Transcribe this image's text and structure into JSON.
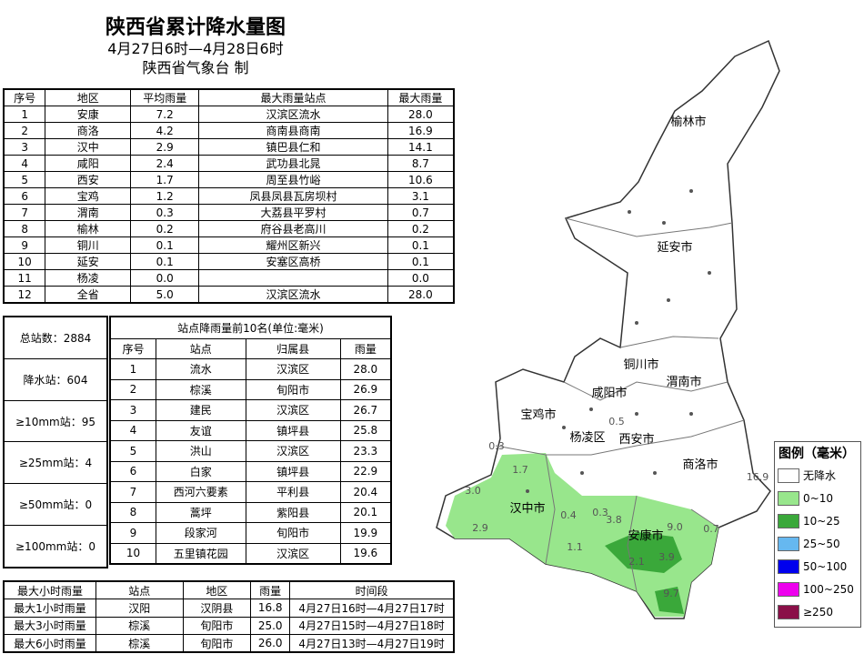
{
  "header": {
    "title": "陕西省累计降水量图",
    "subtitle": "4月27日6时—4月28日6时",
    "issuer": "陕西省气象台 制"
  },
  "region_table": {
    "columns": [
      "序号",
      "地区",
      "平均雨量",
      "最大雨量站点",
      "最大雨量"
    ],
    "rows": [
      [
        "1",
        "安康",
        "7.2",
        "汉滨区流水",
        "28.0"
      ],
      [
        "2",
        "商洛",
        "4.2",
        "商南县商南",
        "16.9"
      ],
      [
        "3",
        "汉中",
        "2.9",
        "镇巴县仁和",
        "14.1"
      ],
      [
        "4",
        "咸阳",
        "2.4",
        "武功县北晁",
        "8.7"
      ],
      [
        "5",
        "西安",
        "1.7",
        "周至县竹峪",
        "10.6"
      ],
      [
        "6",
        "宝鸡",
        "1.2",
        "凤县凤县瓦房坝村",
        "3.1"
      ],
      [
        "7",
        "渭南",
        "0.3",
        "大荔县平罗村",
        "0.7"
      ],
      [
        "8",
        "榆林",
        "0.2",
        "府谷县老高川",
        "0.2"
      ],
      [
        "9",
        "铜川",
        "0.1",
        "耀州区新兴",
        "0.1"
      ],
      [
        "10",
        "延安",
        "0.1",
        "安塞区高桥",
        "0.1"
      ],
      [
        "11",
        "杨凌",
        "0.0",
        null,
        "0.0"
      ],
      [
        "12",
        "全省",
        "5.0",
        "汉滨区流水",
        "28.0"
      ]
    ]
  },
  "stats": [
    "总站数：2884",
    "降水站：604",
    "≥10mm站：95",
    "≥25mm站：4",
    "≥50mm站：0",
    "≥100mm站：0"
  ],
  "top10": {
    "title": "站点降雨量前10名(单位:毫米)",
    "columns": [
      "序号",
      "站点",
      "归属县",
      "雨量"
    ],
    "rows": [
      [
        "1",
        "流水",
        "汉滨区",
        "28.0"
      ],
      [
        "2",
        "棕溪",
        "旬阳市",
        "26.9"
      ],
      [
        "3",
        "建民",
        "汉滨区",
        "26.7"
      ],
      [
        "4",
        "友谊",
        "镇坪县",
        "25.8"
      ],
      [
        "5",
        "洪山",
        "汉滨区",
        "23.3"
      ],
      [
        "6",
        "白家",
        "镇坪县",
        "22.9"
      ],
      [
        "7",
        "西河六要素",
        "平利县",
        "20.4"
      ],
      [
        "8",
        "蒿坪",
        "紫阳县",
        "20.1"
      ],
      [
        "9",
        "段家河",
        "旬阳市",
        "19.9"
      ],
      [
        "10",
        "五里镇花园",
        "汉滨区",
        "19.6"
      ]
    ]
  },
  "hourly": {
    "columns": [
      "最大小时雨量",
      "站点",
      "地区",
      "雨量",
      "时间段"
    ],
    "rows": [
      [
        "最大1小时雨量",
        "汉阳",
        "汉阴县",
        "16.8",
        "4月27日16时—4月27日17时"
      ],
      [
        "最大3小时雨量",
        "棕溪",
        "旬阳市",
        "25.0",
        "4月27日15时—4月27日18时"
      ],
      [
        "最大6小时雨量",
        "棕溪",
        "旬阳市",
        "26.0",
        "4月27日13时—4月27日19时"
      ]
    ]
  },
  "map": {
    "cities": [
      "榆林市",
      "延安市",
      "铜川市",
      "渭南市",
      "咸阳市",
      "宝鸡市",
      "杨凌区",
      "西安市",
      "商洛市",
      "汉中市",
      "安康市"
    ],
    "value_labels": [
      "0.3",
      "1.7",
      "3.0",
      "2.9",
      "0.5",
      "0.3",
      "0.4",
      "1.1",
      "3.8",
      "9.0",
      "0.7",
      "3.9",
      "2.1",
      "16.9",
      "9.7"
    ]
  },
  "legend": {
    "title": "图例（毫米）",
    "items": [
      {
        "label": "无降水",
        "color": "#ffffff"
      },
      {
        "label": "0~10",
        "color": "#98e68c"
      },
      {
        "label": "10~25",
        "color": "#3aa83a"
      },
      {
        "label": "25~50",
        "color": "#66b8f0"
      },
      {
        "label": "50~100",
        "color": "#0000ee"
      },
      {
        "label": "100~250",
        "color": "#ee00ee"
      },
      {
        "label": "≥250",
        "color": "#8a1048"
      }
    ]
  }
}
